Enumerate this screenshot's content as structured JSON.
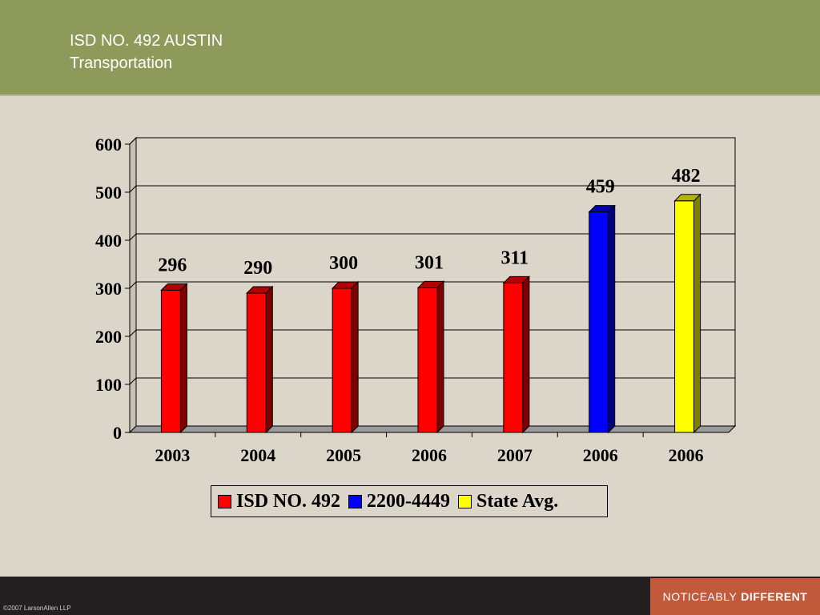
{
  "header": {
    "title_line1": "ISD NO. 492 AUSTIN",
    "title_line2": "Transportation",
    "bg_color": "#8e9a5a"
  },
  "footer": {
    "copyright": "©2007 LarsonAllen LLP",
    "brand_regular": "NOTICEABLY",
    "brand_bold": "DIFFERENT",
    "brand_color": "#c15a3b"
  },
  "chart_data": {
    "type": "bar",
    "title": "",
    "xlabel": "",
    "ylabel": "",
    "ylim": [
      0,
      600
    ],
    "yticks": [
      0,
      100,
      200,
      300,
      400,
      500,
      600
    ],
    "grid": true,
    "categories": [
      "2003",
      "2004",
      "2005",
      "2006",
      "2007",
      "2006",
      "2006"
    ],
    "values": [
      296,
      290,
      300,
      301,
      311,
      459,
      482
    ],
    "bar_series": [
      0,
      0,
      0,
      0,
      0,
      1,
      2
    ],
    "series": [
      {
        "name": "ISD NO. 492",
        "color": "#ff0000"
      },
      {
        "name": "2200-4449",
        "color": "#0000ff"
      },
      {
        "name": "State Avg.",
        "color": "#ffff00"
      }
    ],
    "legend_position": "bottom"
  }
}
